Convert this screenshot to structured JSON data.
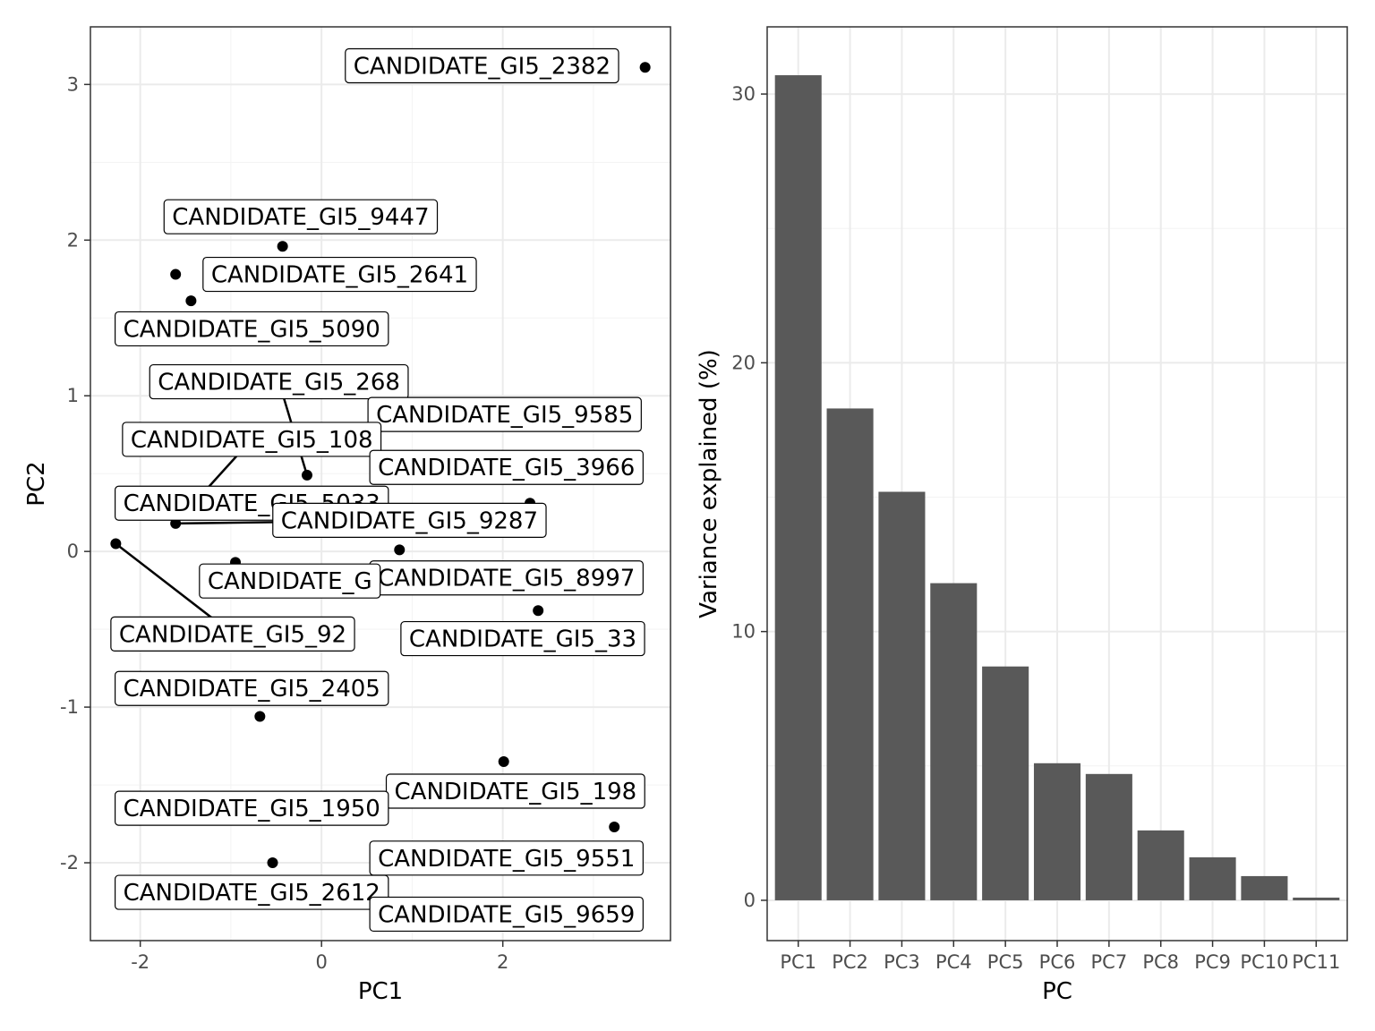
{
  "chart_data": [
    {
      "type": "scatter",
      "xlabel": "PC1",
      "ylabel": "PC2",
      "xlim": [
        -2.55,
        3.85
      ],
      "ylim": [
        -2.5,
        3.37
      ],
      "xticks": [
        "-2",
        "0",
        "2"
      ],
      "xtick_values": [
        -2,
        0,
        2
      ],
      "yticks": [
        "-2",
        "-1",
        "0",
        "1",
        "2",
        "3"
      ],
      "ytick_values": [
        -2,
        -1,
        0,
        1,
        2,
        3
      ],
      "grid": true,
      "point_color": "#000000",
      "points": [
        {
          "label": "CANDIDATE_GI5_2382",
          "x": 3.57,
          "y": 3.11
        },
        {
          "label": "CANDIDATE_GI5_9447",
          "x": -0.43,
          "y": 1.96
        },
        {
          "label": "CANDIDATE_GI5_2641",
          "x": -1.61,
          "y": 1.78
        },
        {
          "label": "CANDIDATE_GI5_5090",
          "x": -1.44,
          "y": 1.61
        },
        {
          "label": "CANDIDATE_GI5_268",
          "x": -0.16,
          "y": 0.49
        },
        {
          "label": "CANDIDATE_GI5_9585",
          "x": 2.3,
          "y": 0.31
        },
        {
          "label": "CANDIDATE_GI5_108",
          "x": -1.61,
          "y": 0.18
        },
        {
          "label": "CANDIDATE_GI5_3966",
          "x": 0.86,
          "y": 0.01
        },
        {
          "label": "CANDIDATE_GI5_5033",
          "x": -2.27,
          "y": 0.05
        },
        {
          "label": "CANDIDATE_GI5_9287",
          "x": -0.95,
          "y": -0.07
        },
        {
          "label": "CANDIDATE_GI5_8997",
          "x": 2.39,
          "y": -0.38
        },
        {
          "label": "CANDIDATE_GI5_33",
          "x": -0.68,
          "y": -1.06
        },
        {
          "label": "CANDIDATE_GI5_92",
          "x": 2.01,
          "y": -1.35
        },
        {
          "label": "CANDIDATE_GI5_2405",
          "x": 3.23,
          "y": -1.77
        },
        {
          "label": "CANDIDATE_GI5_198",
          "x": -0.54,
          "y": -2.0
        }
      ],
      "text_labels": [
        {
          "text": "CANDIDATE_GI5_2382",
          "x": 1.77,
          "y": 3.12,
          "px": null,
          "py": null
        },
        {
          "text": "CANDIDATE_GI5_9447",
          "x": -0.23,
          "y": 2.15
        },
        {
          "text": "CANDIDATE_GI5_2641",
          "x": 0.2,
          "y": 1.78
        },
        {
          "text": "CANDIDATE_GI5_5090",
          "x": -0.77,
          "y": 1.43
        },
        {
          "text": "CANDIDATE_GI5_268",
          "x": -0.47,
          "y": 1.09
        },
        {
          "text": "CANDIDATE_GI5_9585",
          "x": 2.02,
          "y": 0.88
        },
        {
          "text": "CANDIDATE_GI5_108",
          "x": -0.77,
          "y": 0.72
        },
        {
          "text": "CANDIDATE_GI5_3966",
          "x": 2.04,
          "y": 0.54
        },
        {
          "text": "CANDIDATE_GI5_5033",
          "x": -0.77,
          "y": 0.31
        },
        {
          "text": "CANDIDATE_GI5_9287",
          "x": 0.97,
          "y": 0.2
        },
        {
          "text": "CANDIDATE_GI5_8997",
          "x": 2.04,
          "y": -0.17
        },
        {
          "text": "CANDIDATE_GI5_33",
          "x": 2.22,
          "y": -0.56
        },
        {
          "text": "CANDIDATE_GI5_92",
          "x": -0.98,
          "y": -0.53
        },
        {
          "text": "CANDIDATE_GI5_2405",
          "x": -0.77,
          "y": -0.88
        },
        {
          "text": "CANDIDATE_GI5_198",
          "x": 2.14,
          "y": -1.54
        },
        {
          "text": "CANDIDATE_GI5_1950",
          "x": -0.77,
          "y": -1.65
        },
        {
          "text": "CANDIDATE_GI5_9551",
          "x": 2.04,
          "y": -1.97
        },
        {
          "text": "CANDIDATE_GI5_2612",
          "x": -0.77,
          "y": -2.19
        },
        {
          "text": "CANDIDATE_GI5_9659",
          "x": 2.04,
          "y": -2.33
        },
        {
          "text": "CANDIDATE_G",
          "x": -0.35,
          "y": -0.19
        }
      ]
    },
    {
      "type": "bar",
      "xlabel": "PC",
      "ylabel": "Variance explained (%)",
      "categories": [
        "PC1",
        "PC2",
        "PC3",
        "PC4",
        "PC5",
        "PC6",
        "PC7",
        "PC8",
        "PC9",
        "PC10",
        "PC11"
      ],
      "values": [
        30.7,
        18.3,
        15.2,
        11.8,
        8.7,
        5.1,
        4.7,
        2.6,
        1.6,
        0.9,
        0.1
      ],
      "ylim": [
        -1.5,
        32.5
      ],
      "yticks": [
        "0",
        "10",
        "20",
        "30"
      ],
      "ytick_values": [
        0,
        10,
        20,
        30
      ],
      "grid": true,
      "bar_color": "#595959"
    }
  ]
}
